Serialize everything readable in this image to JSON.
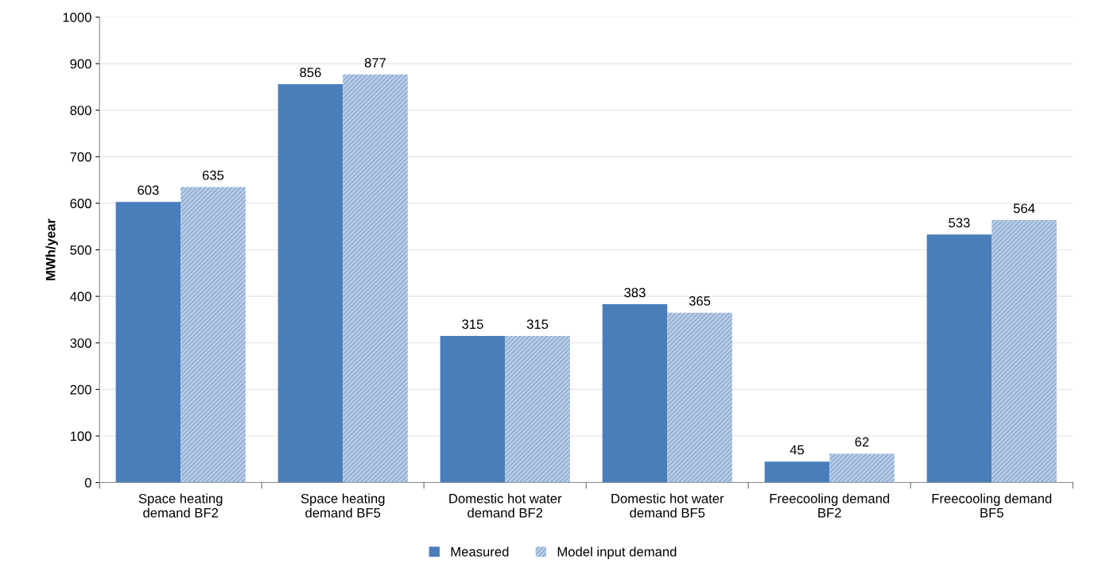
{
  "chart_data": {
    "type": "bar",
    "ylabel": "MWh/year",
    "categories": [
      "Space heating\ndemand BF2",
      "Space heating\ndemand BF5",
      "Domestic hot water\ndemand BF2",
      "Domestic hot water\ndemand BF5",
      "Freecooling demand\nBF2",
      "Freecooling demand\nBF5"
    ],
    "series": [
      {
        "name": "Measured",
        "color": "#4a7ebb",
        "values": [
          603,
          856,
          315,
          383,
          45,
          533
        ]
      },
      {
        "name": "Model input demand",
        "color": "#b9cde5",
        "values": [
          635,
          877,
          315,
          365,
          62,
          564
        ]
      }
    ],
    "ylim": [
      0,
      1000
    ],
    "yticks": [
      0,
      100,
      200,
      300,
      400,
      500,
      600,
      700,
      800,
      900,
      1000
    ],
    "grid": "y",
    "legend": "bottom",
    "data_labels": true
  }
}
